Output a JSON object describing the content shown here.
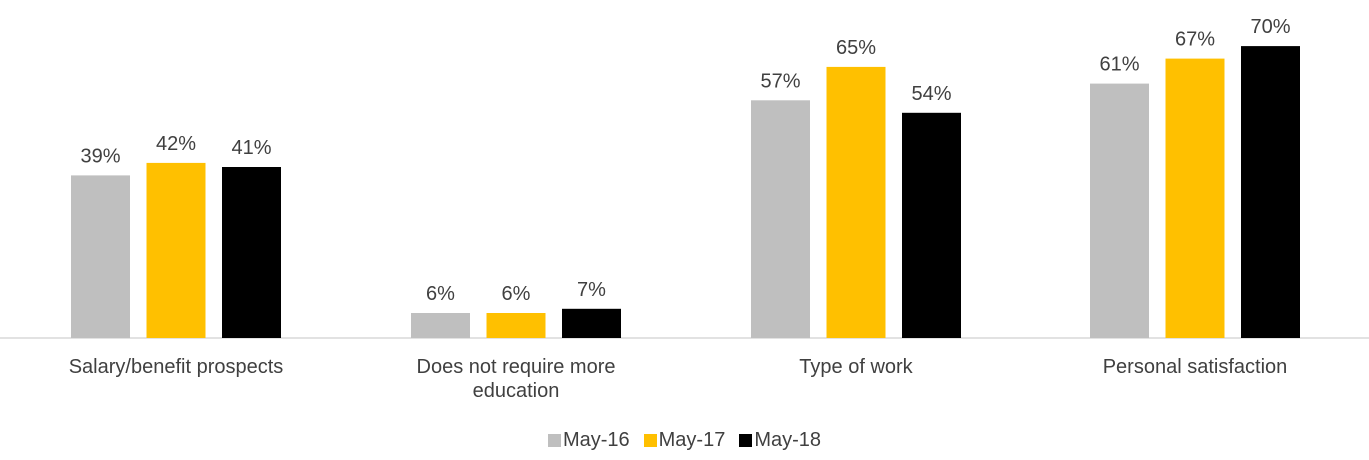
{
  "chart_data": {
    "type": "bar",
    "categories": [
      [
        "Salary/benefit prospects"
      ],
      [
        "Does not require more",
        "education"
      ],
      [
        "Type of work"
      ],
      [
        "Personal satisfaction"
      ]
    ],
    "series": [
      {
        "name": "May-16",
        "color": "#bfbfbf",
        "values": [
          39,
          6,
          57,
          61
        ],
        "labels": [
          "39%",
          "6%",
          "57%",
          "61%"
        ]
      },
      {
        "name": "May-17",
        "color": "#ffc000",
        "values": [
          42,
          6,
          65,
          67
        ],
        "labels": [
          "42%",
          "6%",
          "65%",
          "67%"
        ]
      },
      {
        "name": "May-18",
        "color": "#000000",
        "values": [
          41,
          7,
          54,
          70
        ],
        "labels": [
          "41%",
          "7%",
          "54%",
          "70%"
        ]
      }
    ],
    "ylim": [
      0,
      70
    ],
    "grid": false,
    "legend_position": "bottom"
  }
}
